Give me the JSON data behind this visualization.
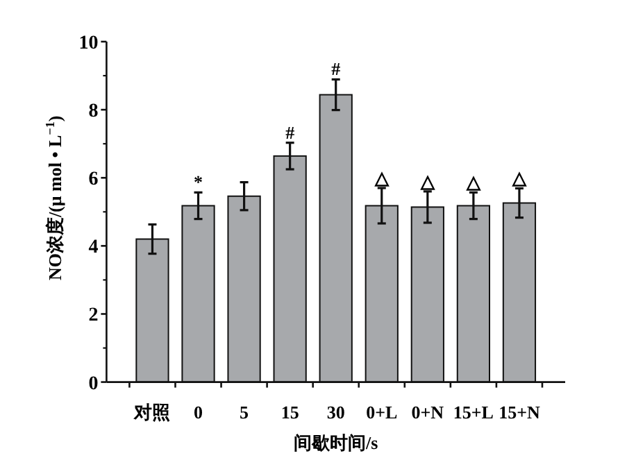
{
  "chart_data": {
    "type": "bar",
    "xlabel": "间歇时间/s",
    "ylabel": "NO浓度/(μ mol • L$^{−1}$)",
    "categories": [
      "对照",
      "0",
      "5",
      "15",
      "30",
      "0+L",
      "0+N",
      "15+L",
      "15+N"
    ],
    "values": [
      4.2,
      5.18,
      5.46,
      6.64,
      8.44,
      5.18,
      5.14,
      5.18,
      5.26
    ],
    "errors": [
      0.43,
      0.39,
      0.41,
      0.39,
      0.45,
      0.52,
      0.46,
      0.39,
      0.43
    ],
    "color": "#a7a9ac",
    "ylim": [
      0,
      10
    ],
    "yticks": [
      0,
      2,
      4,
      6,
      8,
      10
    ],
    "annotations": [
      {
        "text": "*",
        "x": "0",
        "y": 5.57
      },
      {
        "text": "#",
        "x": "15",
        "y": 7.03
      },
      {
        "text": "#",
        "x": "30",
        "y": 8.89
      },
      {
        "text": "△",
        "x": "0+L",
        "y": 5.7
      },
      {
        "text": "△",
        "x": "0+N",
        "y": 5.6
      },
      {
        "text": "△",
        "x": "15+L",
        "y": 5.57
      },
      {
        "text": "△",
        "x": "15+N",
        "y": 5.69
      }
    ],
    "grid": false
  }
}
